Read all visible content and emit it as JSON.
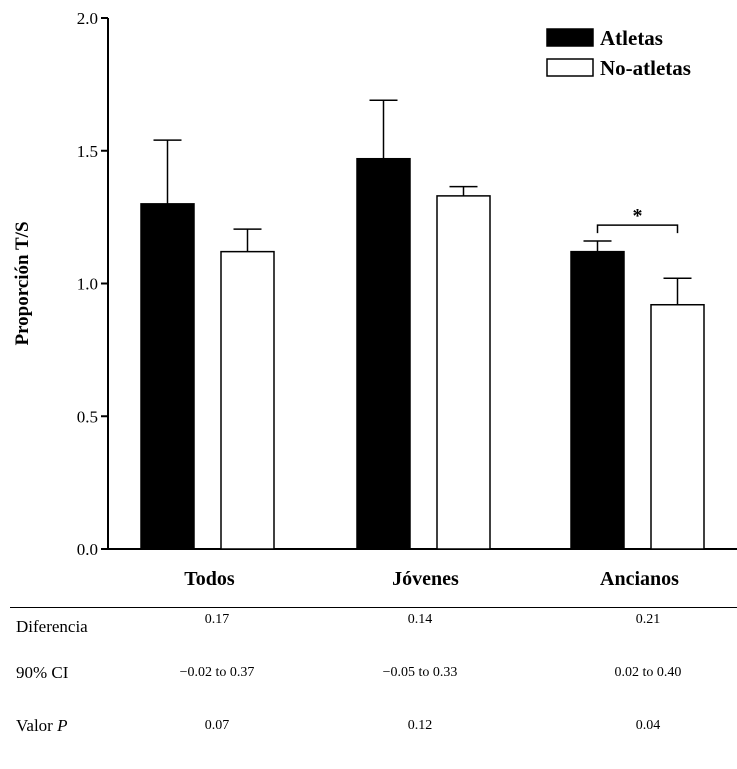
{
  "chart_data": {
    "type": "bar",
    "title": "",
    "xlabel": "",
    "ylabel": "Proporción T/S",
    "ylim": [
      0,
      2.0
    ],
    "yticks": [
      "0.0",
      "0.5",
      "1.0",
      "1.5",
      "2.0"
    ],
    "categories": [
      "Todos",
      "Jóvenes",
      "Ancianos"
    ],
    "series": [
      {
        "name": "Atletas",
        "values": [
          1.3,
          1.47,
          1.12
        ],
        "errors": [
          0.24,
          0.22,
          0.04
        ],
        "fill": "#000000"
      },
      {
        "name": "No-atletas",
        "values": [
          1.12,
          1.33,
          0.92
        ],
        "errors": [
          0.085,
          0.035,
          0.1
        ],
        "fill": "#ffffff"
      }
    ],
    "legend_position": "top-right",
    "annotations": [
      {
        "text": "*",
        "category": "Ancianos",
        "level": 1.22
      }
    ]
  },
  "table": {
    "rows": [
      {
        "label": "Diferencia",
        "values": [
          "0.17",
          "0.14",
          "0.21"
        ]
      },
      {
        "label": "90% CI",
        "values": [
          "−0.02 to 0.37",
          "−0.05 to 0.33",
          "0.02 to 0.40"
        ]
      },
      {
        "label_main": "Valor ",
        "label_italic": "P",
        "values": [
          "0.07",
          "0.12",
          "0.04"
        ]
      }
    ]
  }
}
